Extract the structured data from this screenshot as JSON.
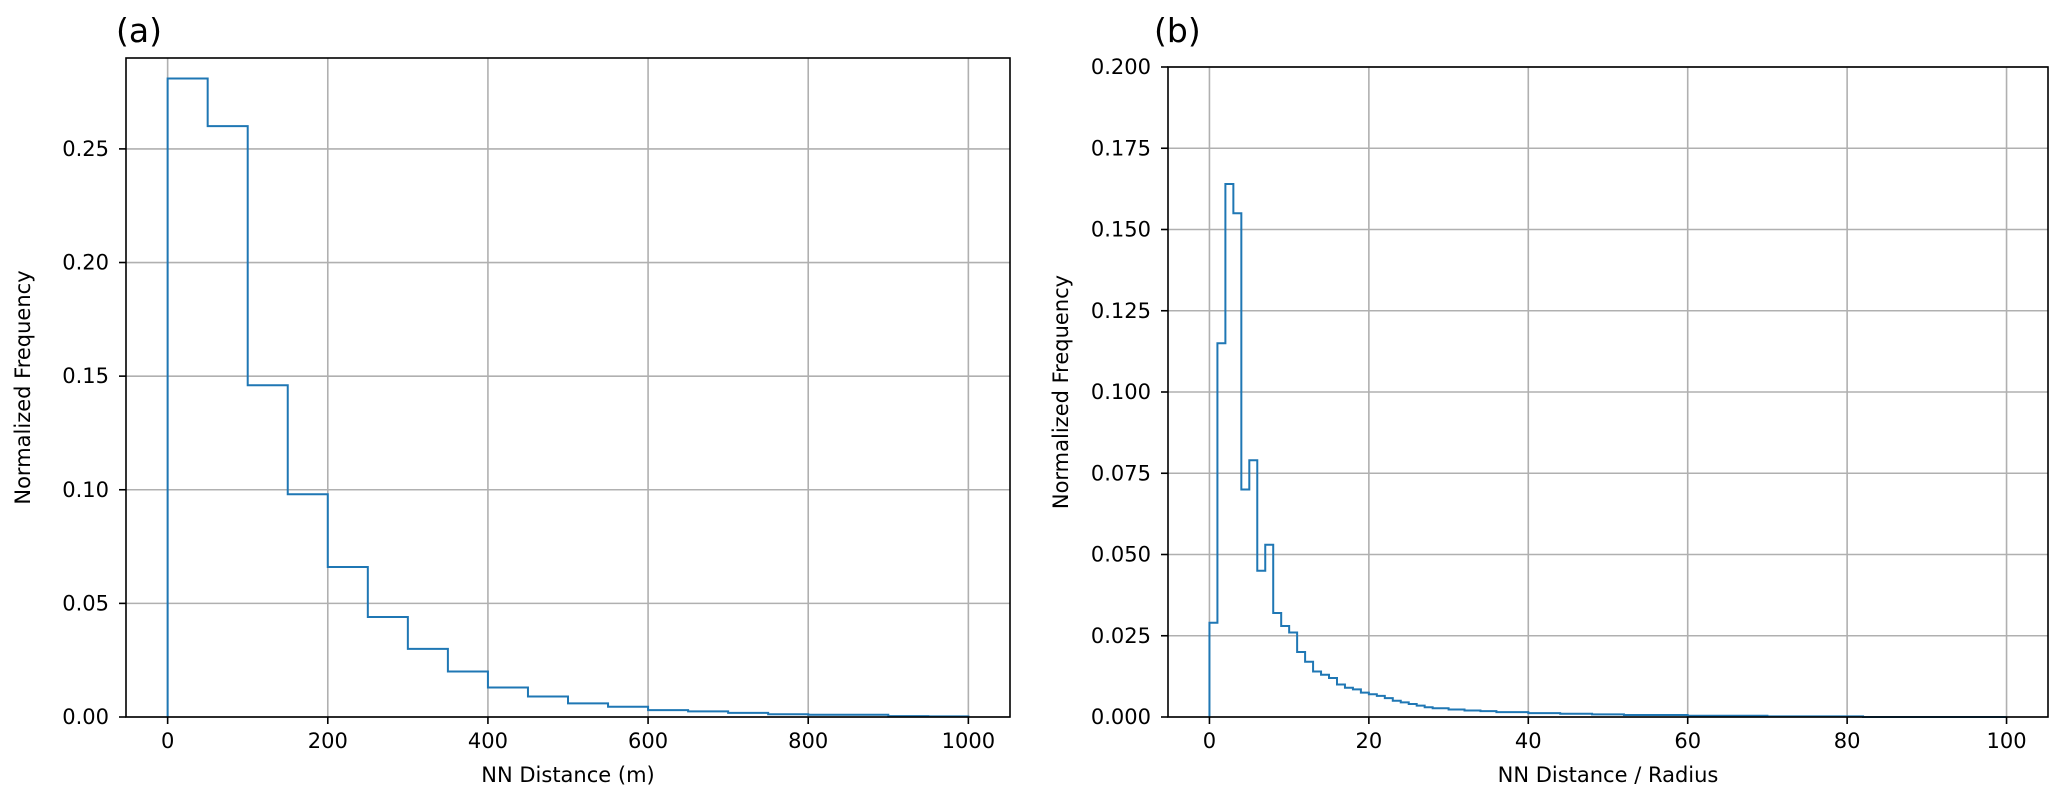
{
  "chart_data": [
    {
      "type": "histogram",
      "title": "(a)",
      "xlabel": "NN Distance (m)",
      "ylabel": "Normalized Frequency",
      "xlim": [
        -52,
        1052
      ],
      "ylim": [
        0,
        0.29
      ],
      "xticks": [
        0,
        200,
        400,
        600,
        800,
        1000
      ],
      "xtick_labels": [
        "0",
        "200",
        "400",
        "600",
        "800",
        "1000"
      ],
      "yticks": [
        0.0,
        0.05,
        0.1,
        0.15,
        0.2,
        0.25
      ],
      "ytick_labels": [
        "0.00",
        "0.05",
        "0.10",
        "0.15",
        "0.20",
        "0.25"
      ],
      "grid": true,
      "color": "#1f77b4",
      "bin_edges": [
        0,
        50,
        100,
        150,
        200,
        250,
        300,
        350,
        400,
        450,
        500,
        550,
        600,
        650,
        700,
        750,
        800,
        850,
        900,
        950,
        1000
      ],
      "values": [
        0.281,
        0.26,
        0.146,
        0.098,
        0.066,
        0.044,
        0.03,
        0.02,
        0.013,
        0.009,
        0.006,
        0.0045,
        0.003,
        0.0025,
        0.0018,
        0.0012,
        0.001,
        0.001,
        0.0004,
        0.0003
      ]
    },
    {
      "type": "histogram",
      "title": "(b)",
      "xlabel": "NN Distance / Radius",
      "ylabel": "Normalized Frequency",
      "xlim": [
        -5.2,
        105.2
      ],
      "ylim": [
        0,
        0.2
      ],
      "xticks": [
        0,
        20,
        40,
        60,
        80,
        100
      ],
      "xtick_labels": [
        "0",
        "20",
        "40",
        "60",
        "80",
        "100"
      ],
      "yticks": [
        0.0,
        0.025,
        0.05,
        0.075,
        0.1,
        0.125,
        0.15,
        0.175,
        0.2
      ],
      "ytick_labels": [
        "0.000",
        "0.025",
        "0.050",
        "0.075",
        "0.100",
        "0.125",
        "0.150",
        "0.175",
        "0.200"
      ],
      "grid": true,
      "color": "#1f77b4",
      "bin_edges": [
        0,
        1,
        2,
        3,
        4,
        5,
        6,
        7,
        8,
        9,
        10,
        11,
        12,
        13,
        14,
        15,
        16,
        17,
        18,
        19,
        20,
        21,
        22,
        23,
        24,
        25,
        26,
        27,
        28,
        30,
        32,
        34,
        36,
        40,
        44,
        48,
        52,
        60,
        70,
        82,
        100
      ],
      "values": [
        0.029,
        0.115,
        0.164,
        0.155,
        0.07,
        0.079,
        0.045,
        0.053,
        0.032,
        0.028,
        0.026,
        0.02,
        0.017,
        0.014,
        0.013,
        0.012,
        0.01,
        0.009,
        0.0085,
        0.0075,
        0.007,
        0.0065,
        0.0058,
        0.005,
        0.0045,
        0.004,
        0.0035,
        0.003,
        0.0027,
        0.0023,
        0.002,
        0.0018,
        0.0015,
        0.0012,
        0.001,
        0.0008,
        0.0006,
        0.0004,
        0.0002,
        0.0
      ]
    }
  ]
}
